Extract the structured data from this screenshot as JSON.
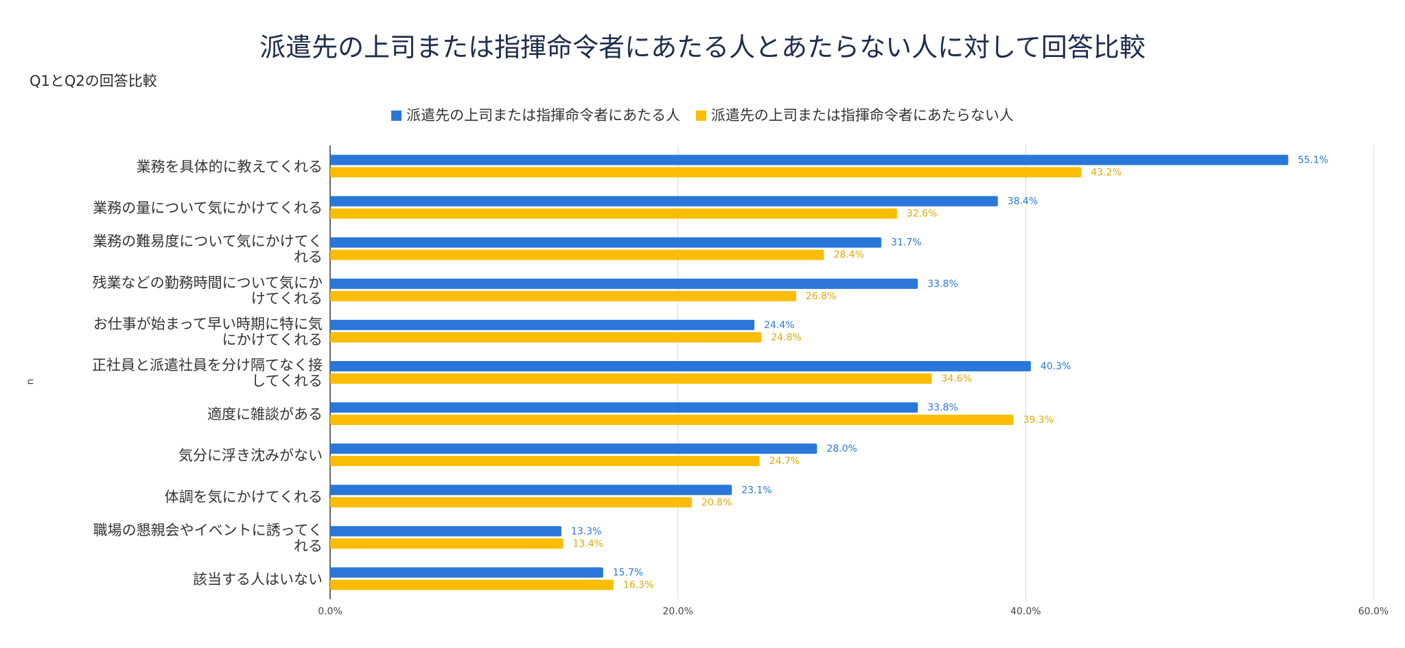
{
  "chart_data": {
    "type": "bar",
    "orientation": "horizontal",
    "title": "派遣先の上司または指揮命令者にあたる人とあたらない人に対して回答比較",
    "subtitle": "Q1とQ2の回答比較",
    "xlabel": "",
    "ylabel": "n",
    "xlim": [
      0,
      60
    ],
    "xticks": [
      "0.0%",
      "20.0%",
      "40.0%",
      "60.0%"
    ],
    "grid": true,
    "legend_position": "top",
    "categories": [
      [
        "業務を具体的に教えてくれる"
      ],
      [
        "業務の量について気にかけてくれる"
      ],
      [
        "業務の難易度について気にかけてく",
        "れる"
      ],
      [
        "残業などの勤務時間について気にか",
        "けてくれる"
      ],
      [
        "お仕事が始まって早い時期に特に気",
        "にかけてくれる"
      ],
      [
        "正社員と派遣社員を分け隔てなく接",
        "してくれる"
      ],
      [
        "適度に雑談がある"
      ],
      [
        "気分に浮き沈みがない"
      ],
      [
        "体調を気にかけてくれる"
      ],
      [
        "職場の懇親会やイベントに誘ってく",
        "れる"
      ],
      [
        "該当する人はいない"
      ]
    ],
    "series": [
      {
        "name": "派遣先の上司または指揮命令者にあたる人",
        "color": "#2a77d9",
        "values": [
          55.1,
          38.4,
          31.7,
          33.8,
          24.4,
          40.3,
          33.8,
          28.0,
          23.1,
          13.3,
          15.7
        ],
        "labels": [
          "55.1%",
          "38.4%",
          "31.7%",
          "33.8%",
          "24.4%",
          "40.3%",
          "33.8%",
          "28.0%",
          "23.1%",
          "13.3%",
          "15.7%"
        ]
      },
      {
        "name": "派遣先の上司または指揮命令者にあたらない人",
        "color": "#fbbc04",
        "values": [
          43.2,
          32.6,
          28.4,
          26.8,
          24.8,
          34.6,
          39.3,
          24.7,
          20.8,
          13.4,
          16.3
        ],
        "labels": [
          "43.2%",
          "32.6%",
          "28.4%",
          "26.8%",
          "24.8%",
          "34.6%",
          "39.3%",
          "24.7%",
          "20.8%",
          "13.4%",
          "16.3%"
        ]
      }
    ]
  }
}
